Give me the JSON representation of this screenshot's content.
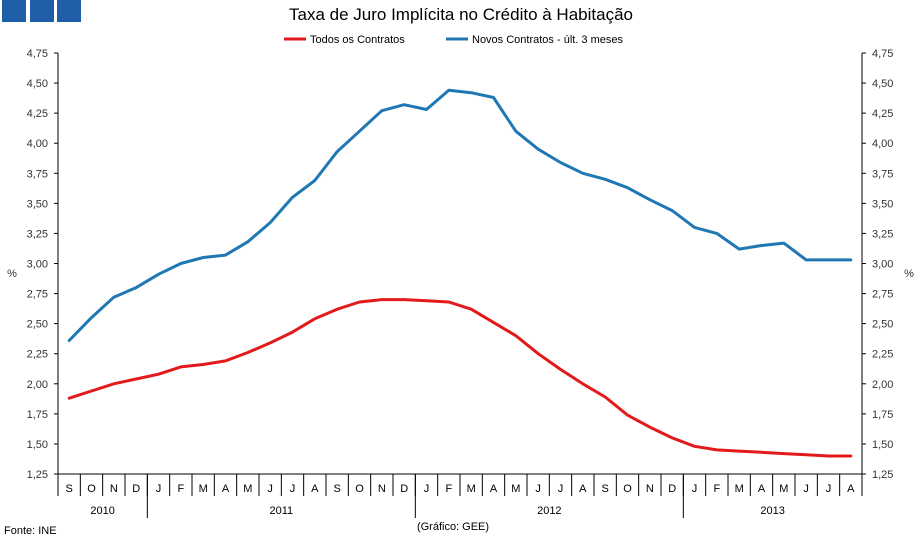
{
  "chart_data": {
    "type": "line",
    "title": "Taxa de Juro Implícita no Crédito à Habitação",
    "ylabel_left": "%",
    "ylabel_right": "%",
    "ylim": [
      1.25,
      4.75
    ],
    "yticks": [
      "1,25",
      "1,50",
      "1,75",
      "2,00",
      "2,25",
      "2,50",
      "2,75",
      "3,00",
      "3,25",
      "3,50",
      "3,75",
      "4,00",
      "4,25",
      "4,50",
      "4,75"
    ],
    "month_labels": [
      "S",
      "O",
      "N",
      "D",
      "J",
      "F",
      "M",
      "A",
      "M",
      "J",
      "J",
      "A",
      "S",
      "O",
      "N",
      "D",
      "J",
      "F",
      "M",
      "A",
      "M",
      "J",
      "J",
      "A",
      "S",
      "O",
      "N",
      "D",
      "J",
      "F",
      "M",
      "A",
      "M",
      "J",
      "J",
      "A"
    ],
    "years": [
      {
        "label": "2010",
        "first": 0,
        "last": 3
      },
      {
        "label": "2011",
        "first": 4,
        "last": 15
      },
      {
        "label": "2012",
        "first": 16,
        "last": 27
      },
      {
        "label": "2013",
        "first": 28,
        "last": 35
      }
    ],
    "legend_position": "top-center",
    "series": [
      {
        "name": "Todos os Contratos",
        "color": "#e31a1c",
        "values": [
          1.88,
          1.94,
          2.0,
          2.04,
          2.08,
          2.14,
          2.16,
          2.19,
          2.26,
          2.34,
          2.43,
          2.54,
          2.62,
          2.68,
          2.7,
          2.7,
          2.69,
          2.68,
          2.62,
          2.51,
          2.4,
          2.25,
          2.12,
          2.0,
          1.89,
          1.74,
          1.64,
          1.55,
          1.48,
          1.45,
          1.44,
          1.43,
          1.42,
          1.41,
          1.4,
          1.4
        ]
      },
      {
        "name": "Novos Contratos - últ. 3 meses",
        "color": "#1f78b4",
        "values": [
          2.36,
          2.55,
          2.72,
          2.8,
          2.91,
          3.0,
          3.05,
          3.07,
          3.18,
          3.34,
          3.55,
          3.69,
          3.93,
          4.1,
          4.27,
          4.32,
          4.28,
          4.44,
          4.42,
          4.38,
          4.1,
          3.95,
          3.84,
          3.75,
          3.7,
          3.63,
          3.53,
          3.44,
          3.3,
          3.25,
          3.12,
          3.15,
          3.17,
          3.03,
          3.03,
          3.03
        ]
      }
    ]
  },
  "footer": {
    "source": "Fonte: INE",
    "credit": "(Gráfico: GEE)"
  }
}
